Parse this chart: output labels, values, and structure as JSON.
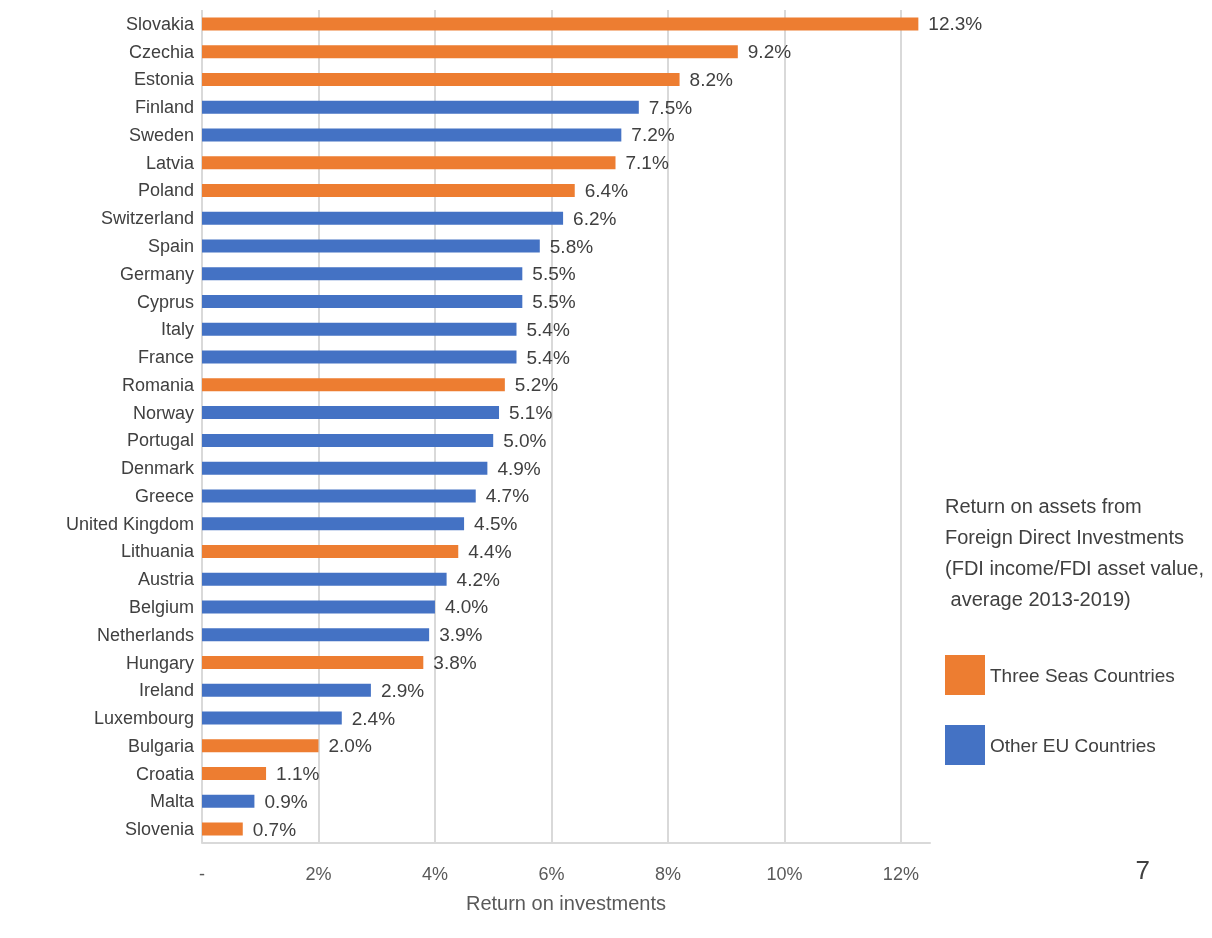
{
  "chart_data": {
    "type": "bar",
    "orientation": "horizontal",
    "xlabel": "Return on investments",
    "legend_title": "Return on assets from Foreign Direct Investments (FDI income/FDI asset value, average 2013-2019)",
    "annotations": [
      "7"
    ],
    "categories": [
      "Slovakia",
      "Czechia",
      "Estonia",
      "Finland",
      "Sweden",
      "Latvia",
      "Poland",
      "Switzerland",
      "Spain",
      "Germany",
      "Cyprus",
      "Italy",
      "France",
      "Romania",
      "Norway",
      "Portugal",
      "Denmark",
      "Greece",
      "United Kingdom",
      "Lithuania",
      "Austria",
      "Belgium",
      "Netherlands",
      "Hungary",
      "Ireland",
      "Luxembourg",
      "Bulgaria",
      "Croatia",
      "Malta",
      "Slovenia"
    ],
    "series": [
      {
        "name": "Three Seas Countries",
        "color": "#ed7d31",
        "values": [
          12.3,
          9.2,
          8.2,
          null,
          null,
          7.1,
          6.4,
          null,
          null,
          null,
          null,
          null,
          null,
          5.2,
          null,
          null,
          null,
          null,
          null,
          4.4,
          null,
          null,
          null,
          3.8,
          null,
          null,
          2.0,
          1.1,
          null,
          0.7
        ],
        "value_labels": [
          "12.3%",
          "9.2%",
          "8.2%",
          null,
          null,
          "7.1%",
          "6.4%",
          null,
          null,
          null,
          null,
          null,
          null,
          "5.2%",
          null,
          null,
          null,
          null,
          null,
          "4.4%",
          null,
          null,
          null,
          "3.8%",
          null,
          null,
          "2.0%",
          "1.1%",
          null,
          "0.7%"
        ]
      },
      {
        "name": "Other EU Countries",
        "color": "#4472c4",
        "values": [
          null,
          null,
          null,
          7.5,
          7.2,
          null,
          null,
          6.2,
          5.8,
          5.5,
          5.5,
          5.4,
          5.4,
          null,
          5.1,
          5.0,
          4.9,
          4.7,
          4.5,
          null,
          4.2,
          4.0,
          3.9,
          null,
          2.9,
          2.4,
          null,
          null,
          0.9,
          null
        ],
        "value_labels": [
          null,
          null,
          null,
          "7.5%",
          "7.2%",
          null,
          null,
          "6.2%",
          "5.8%",
          "5.5%",
          "5.5%",
          "5.4%",
          "5.4%",
          null,
          "5.1%",
          "5.0%",
          "4.9%",
          "4.7%",
          "4.5%",
          null,
          "4.2%",
          "4.0%",
          "3.9%",
          null,
          "2.9%",
          "2.4%",
          null,
          null,
          "0.9%",
          null
        ]
      }
    ],
    "xlim": [
      0,
      12.5
    ],
    "xticks": [
      {
        "value": 0,
        "label": "-"
      },
      {
        "value": 2,
        "label": "2%"
      },
      {
        "value": 4,
        "label": "4%"
      },
      {
        "value": 6,
        "label": "6%"
      },
      {
        "value": 8,
        "label": "8%"
      },
      {
        "value": 10,
        "label": "10%"
      },
      {
        "value": 12,
        "label": "12%"
      }
    ],
    "grid": "x",
    "legend": "right"
  }
}
